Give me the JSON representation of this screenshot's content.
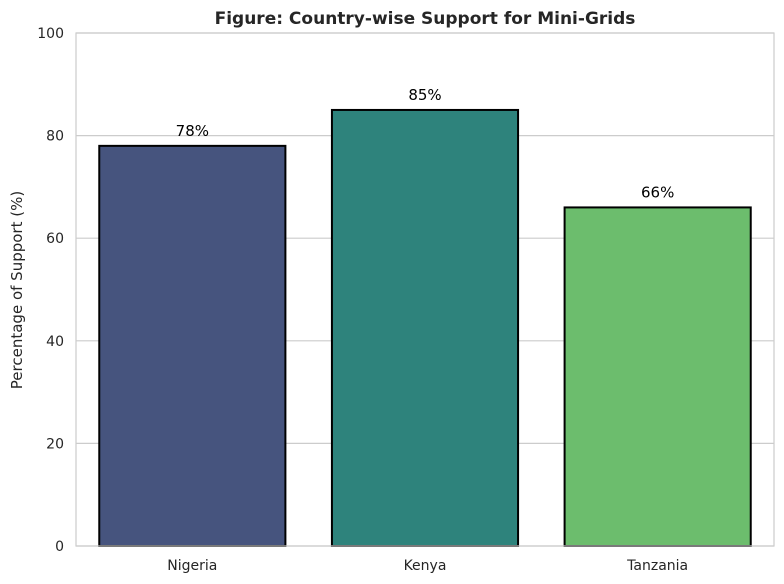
{
  "chart_data": {
    "type": "bar",
    "title": "Figure: Country-wise Support for Mini-Grids",
    "xlabel": "",
    "ylabel": "Percentage of Support (%)",
    "categories": [
      "Nigeria",
      "Kenya",
      "Tanzania"
    ],
    "values": [
      78,
      85,
      66
    ],
    "data_labels": [
      "78%",
      "85%",
      "66%"
    ],
    "ylim": [
      0,
      100
    ],
    "yticks": [
      0,
      20,
      40,
      60,
      80,
      100
    ],
    "grid": "horizontal",
    "legend": "none",
    "colors": [
      "#46547e",
      "#2e837c",
      "#6cbd6d"
    ],
    "edge_color": "#000000",
    "grid_color": "#cccccc"
  }
}
